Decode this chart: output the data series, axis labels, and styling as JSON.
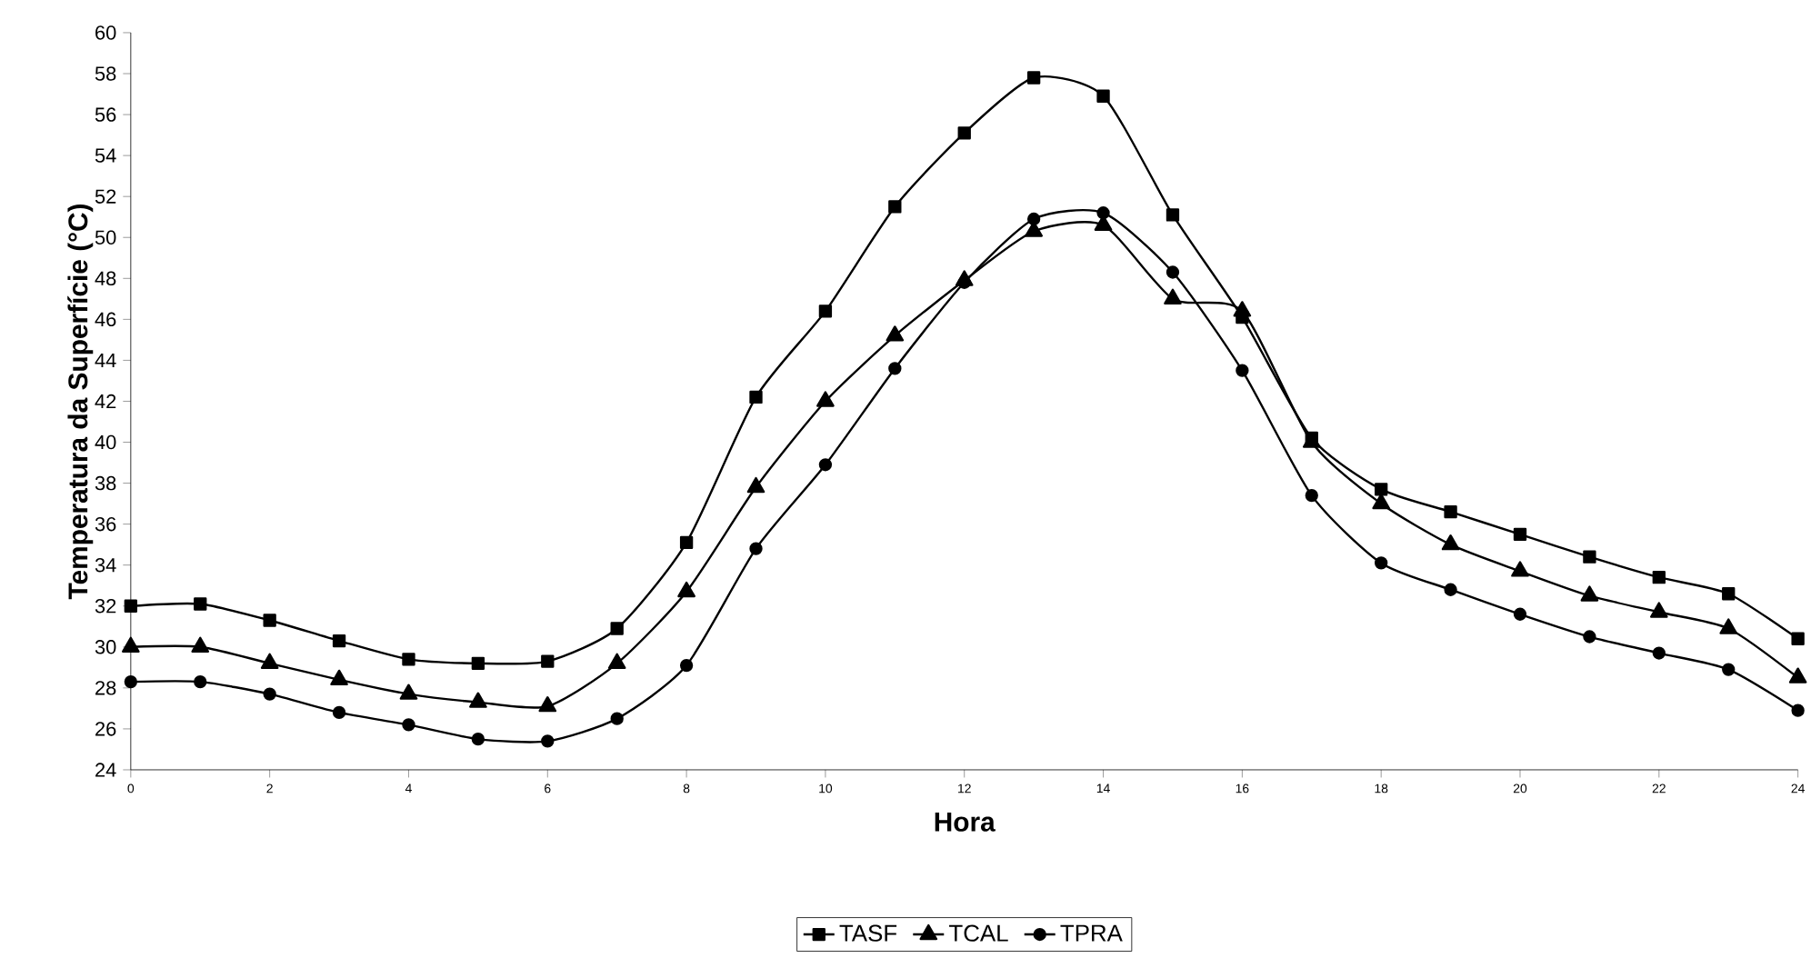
{
  "chart_data": {
    "type": "line",
    "xlabel": "Hora",
    "ylabel": "Temperatura da Superfície (°C)",
    "x": [
      0,
      1,
      2,
      3,
      4,
      5,
      6,
      7,
      8,
      9,
      10,
      11,
      12,
      13,
      14,
      15,
      16,
      17,
      18,
      19,
      20,
      21,
      22,
      23,
      24
    ],
    "series": [
      {
        "name": "TASF",
        "color": "#000000",
        "marker": "square",
        "values": [
          32.0,
          32.1,
          31.3,
          30.3,
          29.4,
          29.2,
          29.3,
          30.9,
          35.1,
          42.2,
          46.4,
          51.5,
          55.1,
          57.8,
          56.9,
          51.1,
          46.1,
          40.2,
          37.7,
          36.6,
          35.5,
          34.4,
          33.4,
          32.6,
          30.4
        ]
      },
      {
        "name": "TCAL",
        "color": "#000000",
        "marker": "triangle",
        "values": [
          30.0,
          30.0,
          29.2,
          28.4,
          27.7,
          27.3,
          27.1,
          29.2,
          32.7,
          37.8,
          42.0,
          45.2,
          47.9,
          50.3,
          50.6,
          47.0,
          46.4,
          40.0,
          37.0,
          35.0,
          33.7,
          32.5,
          31.7,
          30.9,
          28.5
        ]
      },
      {
        "name": "TPRA",
        "color": "#000000",
        "marker": "circle",
        "values": [
          28.3,
          28.3,
          27.7,
          26.8,
          26.2,
          25.5,
          25.4,
          26.5,
          29.1,
          34.8,
          38.9,
          43.6,
          47.8,
          50.9,
          51.2,
          48.3,
          43.5,
          37.4,
          34.1,
          32.8,
          31.6,
          30.5,
          29.7,
          28.9,
          26.9
        ]
      }
    ],
    "xlim": [
      0,
      24
    ],
    "xticks": [
      0,
      2,
      4,
      6,
      8,
      10,
      12,
      14,
      16,
      18,
      20,
      22,
      24
    ],
    "ylim": [
      24,
      60
    ],
    "yticks": [
      24,
      26,
      28,
      30,
      32,
      34,
      36,
      38,
      40,
      42,
      44,
      46,
      48,
      50,
      52,
      54,
      56,
      58,
      60
    ],
    "grid": false,
    "legend": "bottom",
    "line_style": "solid"
  }
}
